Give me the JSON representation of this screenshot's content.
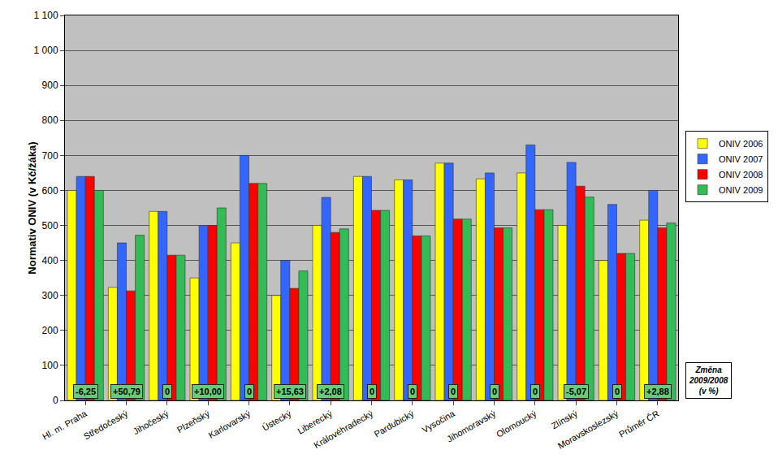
{
  "chart_data": {
    "type": "bar",
    "y_label": "Normativ ONIV (v Kč/žáka)",
    "categories": [
      "Hl. m. Praha",
      "Středočeský",
      "Jihočeský",
      "Plzeňský",
      "Karlovarský",
      "Ústecký",
      "Liberecký",
      "Královéhradecký",
      "Pardubický",
      "Vysočina",
      "Jihomoravský",
      "Olomoucký",
      "Zlínský",
      "Moravskoslezský",
      "Průměr ČR"
    ],
    "series": [
      {
        "name": "ONIV 2006",
        "color": "#ffff00",
        "values": [
          600,
          323,
          540,
          350,
          450,
          300,
          500,
          640,
          630,
          678,
          633,
          650,
          500,
          400,
          515
        ]
      },
      {
        "name": "ONIV 2007",
        "color": "#3366ff",
        "values": [
          640,
          450,
          540,
          500,
          700,
          400,
          580,
          640,
          630,
          678,
          650,
          730,
          680,
          560,
          600
        ]
      },
      {
        "name": "ONIV 2008",
        "color": "#ff0000",
        "values": [
          640,
          313,
          415,
          500,
          620,
          320,
          480,
          543,
          470,
          518,
          493,
          545,
          612,
          420,
          493
        ]
      },
      {
        "name": "ONIV 2009",
        "color": "#33bb55",
        "values": [
          600,
          472,
          415,
          550,
          620,
          370,
          490,
          543,
          470,
          518,
          493,
          545,
          581,
          420,
          507
        ]
      }
    ],
    "annotations": [
      "-6,25",
      "+50,79",
      "0",
      "+10,00",
      "0",
      "+15,63",
      "+2,08",
      "0",
      "0",
      "0",
      "0",
      "0",
      "-5,07",
      "0",
      "+2,88"
    ],
    "annotation_title": [
      "Změna",
      "2009/2008",
      "(v %)"
    ],
    "ylim": [
      0,
      1100
    ],
    "yticks": [
      0,
      100,
      200,
      300,
      400,
      500,
      600,
      700,
      800,
      900,
      {
        "value": 1000,
        "label": "1 000"
      },
      {
        "value": 1100,
        "label": "1 100"
      }
    ],
    "grid": true,
    "legend": "right"
  }
}
